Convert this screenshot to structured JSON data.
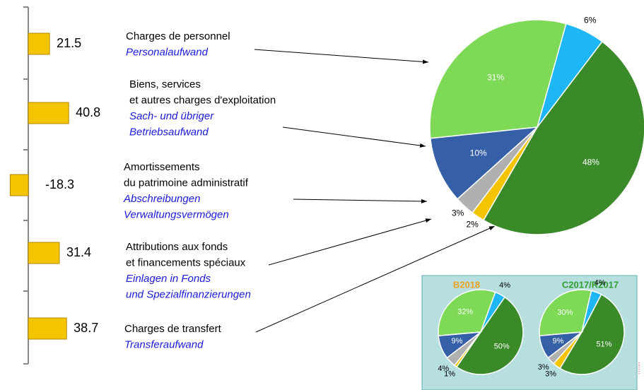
{
  "chart_data": [
    {
      "type": "bar",
      "categories": [
        {
          "fr": [
            "Charges de personnel"
          ],
          "de": [
            "Personalaufwand"
          ]
        },
        {
          "fr": [
            "Biens, services",
            "et autres charges d'exploitation"
          ],
          "de": [
            "Sach- und übriger",
            "Betriebsaufwand"
          ]
        },
        {
          "fr": [
            "Amortissements",
            "du patrimoine administratif"
          ],
          "de": [
            "Abschreibungen",
            "Verwaltungsvermögen"
          ]
        },
        {
          "fr": [
            "Attributions aux fonds",
            "et financements spéciaux"
          ],
          "de": [
            "Einlagen in Fonds",
            "und Spezialfinanzierungen"
          ]
        },
        {
          "fr": [
            "Charges de transfert"
          ],
          "de": [
            "Transferaufwand"
          ]
        }
      ],
      "values": [
        21.5,
        40.8,
        -18.3,
        31.4,
        38.7
      ],
      "color": "#f5c400"
    },
    {
      "type": "pie",
      "values": [
        31,
        6,
        48,
        2,
        3,
        10
      ],
      "value_labels": [
        "31%",
        "6%",
        "48%",
        "2%",
        "3%",
        "10%"
      ],
      "colors": [
        "#7ed957",
        "#1fb6f5",
        "#3a8a2a",
        "#f5c400",
        "#b0b0b0",
        "#3560a8"
      ]
    },
    {
      "type": "pie",
      "title": "B2018",
      "values": [
        32,
        4,
        50,
        1,
        4,
        9
      ],
      "value_labels": [
        "32%",
        "4%",
        "50%",
        "1%",
        "4%",
        "9%"
      ],
      "colors": [
        "#7ed957",
        "#1fb6f5",
        "#3a8a2a",
        "#f5c400",
        "#b0b0b0",
        "#3560a8"
      ]
    },
    {
      "type": "pie",
      "title": "C2017/R2017",
      "values": [
        30,
        4,
        51,
        3,
        3,
        9
      ],
      "value_labels": [
        "30%",
        "4%",
        "51%",
        "3%",
        "3%",
        "9%"
      ],
      "colors": [
        "#7ed957",
        "#1fb6f5",
        "#3a8a2a",
        "#f5c400",
        "#b0b0b0",
        "#3560a8"
      ]
    }
  ]
}
